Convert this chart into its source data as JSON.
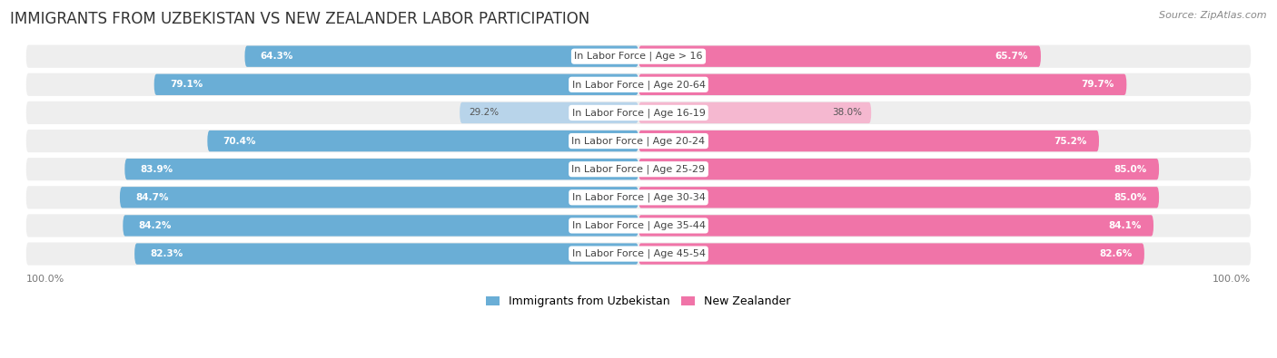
{
  "title": "IMMIGRANTS FROM UZBEKISTAN VS NEW ZEALANDER LABOR PARTICIPATION",
  "source": "Source: ZipAtlas.com",
  "categories": [
    "In Labor Force | Age > 16",
    "In Labor Force | Age 20-64",
    "In Labor Force | Age 16-19",
    "In Labor Force | Age 20-24",
    "In Labor Force | Age 25-29",
    "In Labor Force | Age 30-34",
    "In Labor Force | Age 35-44",
    "In Labor Force | Age 45-54"
  ],
  "uzbekistan_values": [
    64.3,
    79.1,
    29.2,
    70.4,
    83.9,
    84.7,
    84.2,
    82.3
  ],
  "newzealand_values": [
    65.7,
    79.7,
    38.0,
    75.2,
    85.0,
    85.0,
    84.1,
    82.6
  ],
  "uzbekistan_color": "#6aaed6",
  "newzealand_color": "#f074a8",
  "uzbekistan_color_light": "#b8d4ea",
  "newzealand_color_light": "#f5b8d0",
  "row_bg_color": "#eeeeee",
  "title_fontsize": 12,
  "label_fontsize": 8,
  "value_fontsize": 7.5,
  "legend_fontsize": 9
}
